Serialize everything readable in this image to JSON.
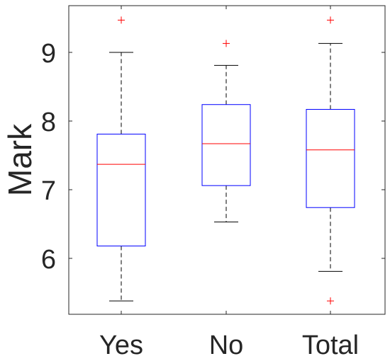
{
  "chart_data": {
    "type": "boxplot",
    "title": "",
    "xlabel": "",
    "ylabel": "Mark",
    "ylim": [
      5.3,
      9.7
    ],
    "yticks": [
      "6",
      "7",
      "8",
      "9"
    ],
    "grid": false,
    "categories": [
      "Yes",
      "No",
      "Total"
    ],
    "boxes": [
      {
        "category": "Yes",
        "whisker_low": 5.38,
        "q1": 6.18,
        "median": 7.37,
        "q3": 7.81,
        "whisker_high": 9.0,
        "outliers": [
          9.47
        ]
      },
      {
        "category": "No",
        "whisker_low": 6.53,
        "q1": 7.06,
        "median": 7.67,
        "q3": 8.24,
        "whisker_high": 8.81,
        "outliers": [
          9.13
        ]
      },
      {
        "category": "Total",
        "whisker_low": 5.81,
        "q1": 6.74,
        "median": 7.58,
        "q3": 8.17,
        "whisker_high": 9.13,
        "outliers": [
          9.47,
          5.38
        ]
      }
    ],
    "colors": {
      "box": "#0000ff",
      "median": "#ff0000",
      "whisker": "#000000",
      "outlier": "#ff0000",
      "axis": "#262626"
    }
  }
}
